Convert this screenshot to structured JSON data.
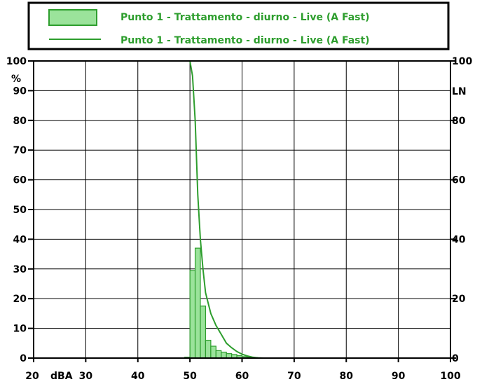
{
  "chart_data": {
    "type": "bar",
    "x_unit_label": "dBA",
    "left_axis_unit": "%",
    "right_axis_label": "LN",
    "xlim": [
      20,
      100
    ],
    "ylim": [
      0,
      100
    ],
    "x_ticks": [
      "20",
      "30",
      "40",
      "50",
      "60",
      "70",
      "80",
      "90",
      "100"
    ],
    "y_ticks_left": [
      "0",
      "10",
      "20",
      "30",
      "40",
      "50",
      "60",
      "70",
      "80",
      "90",
      "100"
    ],
    "y_ticks_right": [
      "0",
      "20",
      "40",
      "60",
      "80",
      "100"
    ],
    "grid": true,
    "legend_position": "top",
    "series": [
      {
        "name": "Punto 1 - Trattamento - diurno - Live (A Fast)",
        "type": "histogram",
        "color": "#2e9e2e",
        "fill": "#9be39b",
        "bin_width": 1,
        "x": [
          49,
          50,
          51,
          52,
          53,
          54,
          55,
          56,
          57,
          58,
          59,
          60,
          61,
          62,
          63
        ],
        "values": [
          0.3,
          29.5,
          37,
          17.5,
          6,
          4,
          2.5,
          2,
          1.5,
          1.2,
          0.8,
          0.5,
          0.3,
          0.2,
          0.1
        ]
      },
      {
        "name": "Punto 1 - Trattamento - diurno - Live (A Fast)",
        "type": "line",
        "color": "#2e9e2e",
        "x": [
          50,
          50.5,
          51,
          51.5,
          52,
          52.5,
          53,
          54,
          55,
          56,
          57,
          58,
          59,
          60,
          61,
          62,
          63,
          64
        ],
        "values": [
          100,
          95,
          80,
          55,
          40,
          30,
          22,
          15,
          11,
          8,
          5,
          3.5,
          2.2,
          1.3,
          0.7,
          0.3,
          0.1,
          0
        ]
      }
    ]
  }
}
